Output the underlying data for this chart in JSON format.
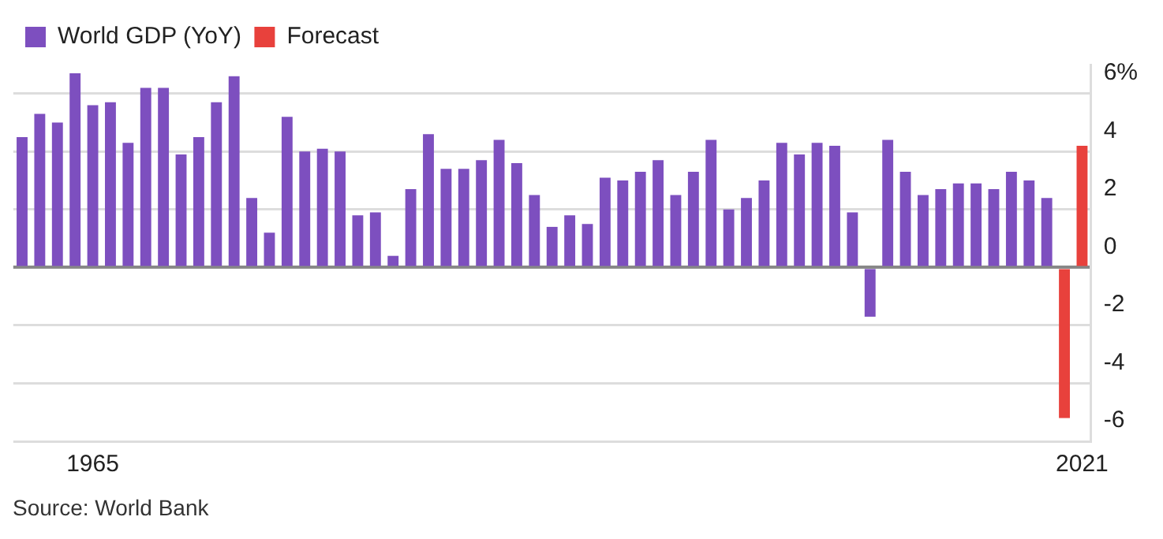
{
  "chart_data": {
    "type": "bar",
    "categories": [
      null,
      null,
      null,
      null,
      "1965",
      null,
      null,
      null,
      null,
      null,
      null,
      null,
      null,
      null,
      null,
      null,
      null,
      null,
      null,
      null,
      null,
      null,
      null,
      null,
      null,
      null,
      null,
      null,
      null,
      null,
      null,
      null,
      null,
      null,
      null,
      null,
      null,
      null,
      null,
      null,
      null,
      null,
      null,
      null,
      null,
      null,
      null,
      null,
      null,
      null,
      null,
      null,
      null,
      null,
      null,
      null,
      null,
      null,
      null,
      null,
      "2021"
    ],
    "series": [
      {
        "name": "World GDP (YoY)",
        "color": "#7d4fbf",
        "values": [
          4.5,
          5.3,
          5.0,
          6.7,
          5.6,
          5.7,
          4.3,
          6.2,
          6.2,
          3.9,
          4.5,
          5.7,
          6.6,
          2.4,
          1.2,
          5.2,
          4.0,
          4.1,
          4.0,
          1.8,
          1.9,
          0.4,
          2.7,
          4.6,
          3.4,
          3.4,
          3.7,
          4.4,
          3.6,
          2.5,
          1.4,
          1.8,
          1.5,
          3.1,
          3.0,
          3.3,
          3.7,
          2.5,
          3.3,
          4.4,
          2.0,
          2.4,
          3.0,
          4.3,
          3.9,
          4.3,
          4.2,
          1.9,
          -1.7,
          4.4,
          3.3,
          2.5,
          2.7,
          2.9,
          2.9,
          2.7,
          3.3,
          3.0,
          2.4,
          null,
          null
        ]
      },
      {
        "name": "Forecast",
        "color": "#e8413c",
        "values": [
          null,
          null,
          null,
          null,
          null,
          null,
          null,
          null,
          null,
          null,
          null,
          null,
          null,
          null,
          null,
          null,
          null,
          null,
          null,
          null,
          null,
          null,
          null,
          null,
          null,
          null,
          null,
          null,
          null,
          null,
          null,
          null,
          null,
          null,
          null,
          null,
          null,
          null,
          null,
          null,
          null,
          null,
          null,
          null,
          null,
          null,
          null,
          null,
          null,
          null,
          null,
          null,
          null,
          null,
          null,
          null,
          null,
          null,
          null,
          -5.2,
          4.2
        ]
      }
    ],
    "ylim": [
      -6,
      7
    ],
    "yticks": [
      -6,
      -4,
      -2,
      0,
      2,
      4,
      {
        "value": 6,
        "label": "6%"
      }
    ],
    "grid": "y",
    "legend": "top left",
    "annotations": [
      "Source: World Bank"
    ]
  }
}
